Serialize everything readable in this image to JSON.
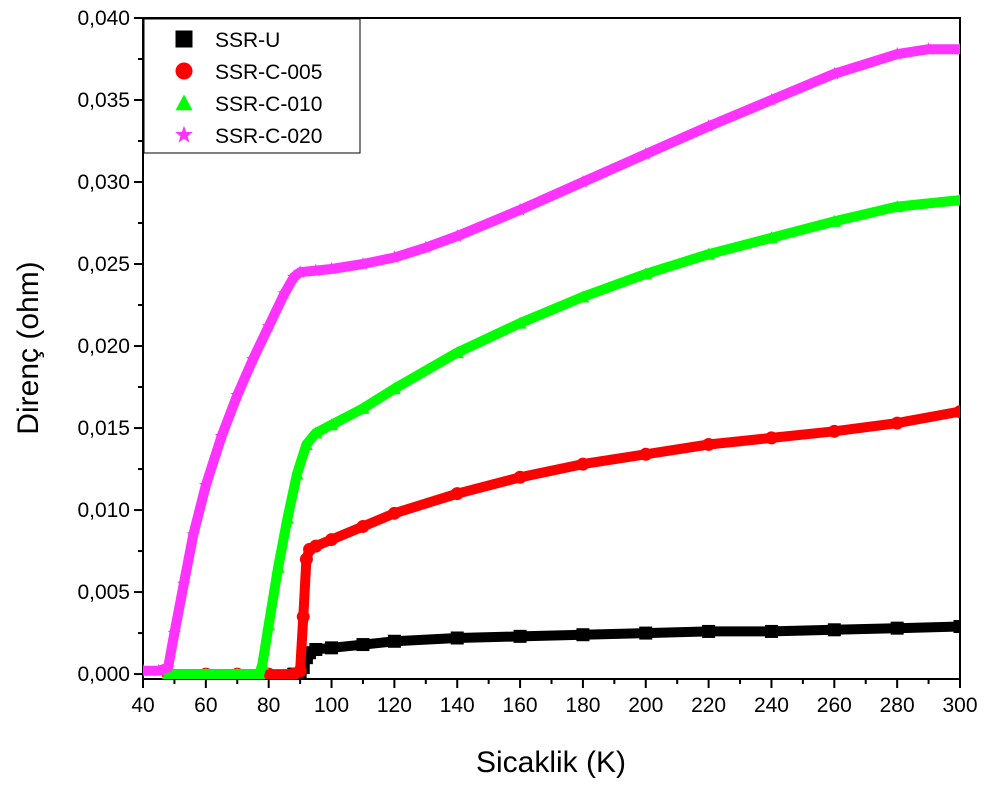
{
  "chart_data": {
    "type": "scatter",
    "xlabel": "Sicaklik (K)",
    "ylabel": "Direnç (ohm)",
    "xlim": [
      40,
      300
    ],
    "ylim": [
      -0.0003,
      0.04
    ],
    "grid": false,
    "legend_position": "top-left",
    "x_ticks": [
      40,
      60,
      80,
      100,
      120,
      140,
      160,
      180,
      200,
      220,
      240,
      260,
      280,
      300
    ],
    "x_tick_labels": [
      "40",
      "60",
      "80",
      "100",
      "120",
      "140",
      "160",
      "180",
      "200",
      "220",
      "240",
      "260",
      "280",
      "300"
    ],
    "y_ticks": [
      0,
      0.005,
      0.01,
      0.015,
      0.02,
      0.025,
      0.03,
      0.035,
      0.04
    ],
    "y_tick_labels": [
      "0,000",
      "0,005",
      "0,010",
      "0,015",
      "0,020",
      "0,025",
      "0,030",
      "0,035",
      "0,040"
    ],
    "series": [
      {
        "name": "SSR-U",
        "color": "#000000",
        "marker": "square",
        "x": [
          88,
          90,
          91,
          92,
          93,
          95,
          100,
          110,
          120,
          140,
          160,
          180,
          200,
          220,
          240,
          260,
          280,
          300
        ],
        "y": [
          0.0,
          0.0,
          0.0004,
          0.001,
          0.0013,
          0.0015,
          0.0016,
          0.0018,
          0.002,
          0.0022,
          0.0023,
          0.0024,
          0.0025,
          0.0026,
          0.0026,
          0.0027,
          0.0028,
          0.0029
        ]
      },
      {
        "name": "SSR-C-005",
        "color": "#ff0000",
        "marker": "circle",
        "x": [
          48,
          60,
          70,
          80,
          88,
          90,
          91,
          92,
          93,
          95,
          100,
          110,
          120,
          140,
          160,
          180,
          200,
          220,
          240,
          260,
          280,
          300
        ],
        "y": [
          0.0,
          0.0,
          0.0,
          0.0,
          0.0,
          0.0002,
          0.0035,
          0.007,
          0.0076,
          0.0078,
          0.0082,
          0.009,
          0.0098,
          0.011,
          0.012,
          0.0128,
          0.0134,
          0.014,
          0.0144,
          0.0148,
          0.0153,
          0.016
        ]
      },
      {
        "name": "SSR-C-010",
        "color": "#00ff00",
        "marker": "triangle",
        "x": [
          48,
          60,
          70,
          77,
          78,
          80,
          83,
          86,
          89,
          92,
          95,
          100,
          110,
          120,
          140,
          160,
          180,
          200,
          220,
          240,
          260,
          280,
          300
        ],
        "y": [
          0.0,
          0.0,
          0.0,
          0.0,
          0.0006,
          0.003,
          0.0065,
          0.0095,
          0.0122,
          0.014,
          0.0147,
          0.0152,
          0.0162,
          0.0174,
          0.0196,
          0.0214,
          0.023,
          0.0244,
          0.0256,
          0.0266,
          0.0276,
          0.0285,
          0.0289
        ]
      },
      {
        "name": "SSR-C-020",
        "color": "#ff33ff",
        "marker": "star",
        "x": [
          40,
          45,
          48,
          50,
          53,
          56,
          60,
          65,
          70,
          75,
          80,
          85,
          88,
          90,
          95,
          100,
          110,
          120,
          130,
          140,
          160,
          180,
          200,
          220,
          240,
          260,
          280,
          290,
          300
        ],
        "y": [
          0.0002,
          0.0002,
          0.0004,
          0.0025,
          0.0055,
          0.0085,
          0.0115,
          0.0145,
          0.017,
          0.0192,
          0.0212,
          0.0232,
          0.0242,
          0.0245,
          0.0246,
          0.0247,
          0.025,
          0.0254,
          0.026,
          0.0267,
          0.0283,
          0.03,
          0.0317,
          0.0334,
          0.035,
          0.0366,
          0.0378,
          0.0381,
          0.0381
        ]
      }
    ]
  }
}
